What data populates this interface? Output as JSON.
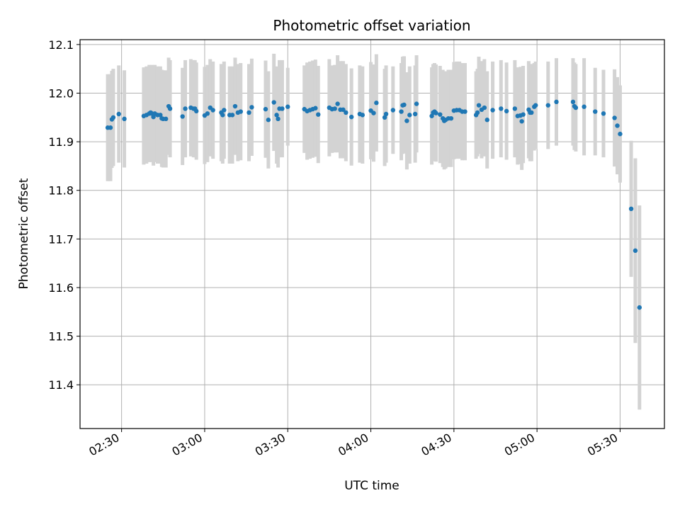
{
  "chart_data": {
    "type": "scatter",
    "title": "Photometric offset variation",
    "xlabel": "UTC time",
    "ylabel": "Photometric offset",
    "xlim": [
      "02:15",
      "05:46"
    ],
    "ylim": [
      11.31,
      12.11
    ],
    "x_ticks": [
      "02:30",
      "03:00",
      "03:30",
      "04:00",
      "04:30",
      "05:00",
      "05:30"
    ],
    "y_ticks": [
      "11.4",
      "11.5",
      "11.6",
      "11.7",
      "11.8",
      "11.9",
      "12.0",
      "12.1"
    ],
    "grid": true,
    "legend": false,
    "colors": {
      "points": "#1f77b4",
      "errorbars": "#d3d3d3",
      "grid": "#b0b0b0"
    },
    "series": [
      {
        "x": [
          "02:25:00",
          "02:26:00",
          "02:26:30",
          "02:27:00",
          "02:29:00",
          "02:31:00",
          "02:38:00",
          "02:39:00",
          "02:40:00",
          "02:40:30",
          "02:41:00",
          "02:41:30",
          "02:42:00",
          "02:43:00",
          "02:44:00",
          "02:44:30",
          "02:45:00",
          "02:46:00",
          "02:47:00",
          "02:47:30",
          "02:52:00",
          "02:53:00",
          "02:55:00",
          "02:56:00",
          "02:56:30",
          "02:57:00",
          "03:00:00",
          "03:01:00",
          "03:02:00",
          "03:03:00",
          "03:06:00",
          "03:06:30",
          "03:07:00",
          "03:09:00",
          "03:10:00",
          "03:11:00",
          "03:12:00",
          "03:13:00",
          "03:16:00",
          "03:17:00",
          "03:22:00",
          "03:23:00",
          "03:25:00",
          "03:26:00",
          "03:26:30",
          "03:27:00",
          "03:28:00",
          "03:30:00",
          "03:36:00",
          "03:37:00",
          "03:38:00",
          "03:39:00",
          "03:40:00",
          "03:41:00",
          "03:45:00",
          "03:46:00",
          "03:47:00",
          "03:48:00",
          "03:49:00",
          "03:50:00",
          "03:51:00",
          "03:53:00",
          "03:56:00",
          "03:57:00",
          "04:00:00",
          "04:01:00",
          "04:02:00",
          "04:05:00",
          "04:05:30",
          "04:08:00",
          "04:11:00",
          "04:11:30",
          "04:12:00",
          "04:13:00",
          "04:14:00",
          "04:16:00",
          "04:16:30",
          "04:22:00",
          "04:22:30",
          "04:23:00",
          "04:23:30",
          "04:25:00",
          "04:26:00",
          "04:26:30",
          "04:27:00",
          "04:28:00",
          "04:29:00",
          "04:30:00",
          "04:31:00",
          "04:32:00",
          "04:33:00",
          "04:34:00",
          "04:38:00",
          "04:38:30",
          "04:39:00",
          "04:40:00",
          "04:41:00",
          "04:42:00",
          "04:44:00",
          "04:47:00",
          "04:49:00",
          "04:52:00",
          "04:53:00",
          "04:54:00",
          "04:54:30",
          "04:55:00",
          "04:57:00",
          "04:57:30",
          "04:58:00",
          "04:59:00",
          "04:59:30",
          "05:04:00",
          "05:07:00",
          "05:13:00",
          "05:13:30",
          "05:14:00",
          "05:17:00",
          "05:21:00",
          "05:24:00",
          "05:28:00",
          "05:29:00",
          "05:30:00",
          "05:34:00",
          "05:35:30",
          "05:37:00"
        ],
        "y": [
          11.929,
          11.929,
          11.946,
          11.95,
          11.957,
          11.947,
          11.953,
          11.955,
          11.958,
          11.96,
          11.958,
          11.951,
          11.958,
          11.955,
          11.955,
          11.948,
          11.947,
          11.947,
          11.973,
          11.968,
          11.952,
          11.968,
          11.97,
          11.968,
          11.968,
          11.963,
          11.954,
          11.958,
          11.97,
          11.965,
          11.96,
          11.955,
          11.965,
          11.955,
          11.955,
          11.973,
          11.96,
          11.962,
          11.96,
          11.971,
          11.967,
          11.945,
          11.981,
          11.955,
          11.947,
          11.968,
          11.968,
          11.972,
          11.967,
          11.963,
          11.965,
          11.967,
          11.969,
          11.956,
          11.97,
          11.967,
          11.968,
          11.978,
          11.966,
          11.966,
          11.96,
          11.951,
          11.957,
          11.955,
          11.964,
          11.959,
          11.98,
          11.95,
          11.957,
          11.965,
          11.962,
          11.975,
          11.976,
          11.943,
          11.955,
          11.957,
          11.978,
          11.953,
          11.96,
          11.962,
          11.959,
          11.956,
          11.948,
          11.943,
          11.945,
          11.948,
          11.948,
          11.964,
          11.965,
          11.965,
          11.962,
          11.962,
          11.955,
          11.96,
          11.975,
          11.966,
          11.97,
          11.945,
          11.965,
          11.968,
          11.963,
          11.968,
          11.953,
          11.954,
          11.942,
          11.956,
          11.966,
          11.96,
          11.96,
          11.972,
          11.975,
          11.975,
          11.982,
          11.982,
          11.973,
          11.97,
          11.972,
          11.962,
          11.958,
          11.949,
          11.933,
          11.916,
          11.762,
          11.676,
          11.559
        ],
        "err": [
          0.11,
          0.11,
          0.1,
          0.1,
          0.1,
          0.1,
          0.1,
          0.1,
          0.1,
          0.09,
          0.1,
          0.1,
          0.1,
          0.1,
          0.1,
          0.1,
          0.1,
          0.1,
          0.1,
          0.1,
          0.1,
          0.1,
          0.1,
          0.1,
          0.1,
          0.1,
          0.1,
          0.1,
          0.1,
          0.1,
          0.1,
          0.1,
          0.1,
          0.1,
          0.1,
          0.1,
          0.1,
          0.1,
          0.1,
          0.1,
          0.1,
          0.1,
          0.1,
          0.1,
          0.1,
          0.1,
          0.1,
          0.08,
          0.09,
          0.1,
          0.1,
          0.1,
          0.1,
          0.1,
          0.1,
          0.09,
          0.09,
          0.1,
          0.1,
          0.1,
          0.1,
          0.1,
          0.1,
          0.1,
          0.1,
          0.1,
          0.1,
          0.1,
          0.1,
          0.09,
          0.1,
          0.1,
          0.1,
          0.1,
          0.1,
          0.1,
          0.1,
          0.1,
          0.1,
          0.1,
          0.1,
          0.1,
          0.1,
          0.1,
          0.1,
          0.1,
          0.1,
          0.1,
          0.1,
          0.1,
          0.1,
          0.1,
          0.09,
          0.09,
          0.1,
          0.1,
          0.1,
          0.1,
          0.1,
          0.1,
          0.1,
          0.1,
          0.1,
          0.1,
          0.1,
          0.1,
          0.1,
          0.1,
          0.1,
          0.09,
          0.09,
          0.09,
          0.09,
          0.09,
          0.09,
          0.09,
          0.1,
          0.09,
          0.09,
          0.1,
          0.1,
          0.1,
          0.14,
          0.19,
          0.21
        ]
      }
    ]
  }
}
